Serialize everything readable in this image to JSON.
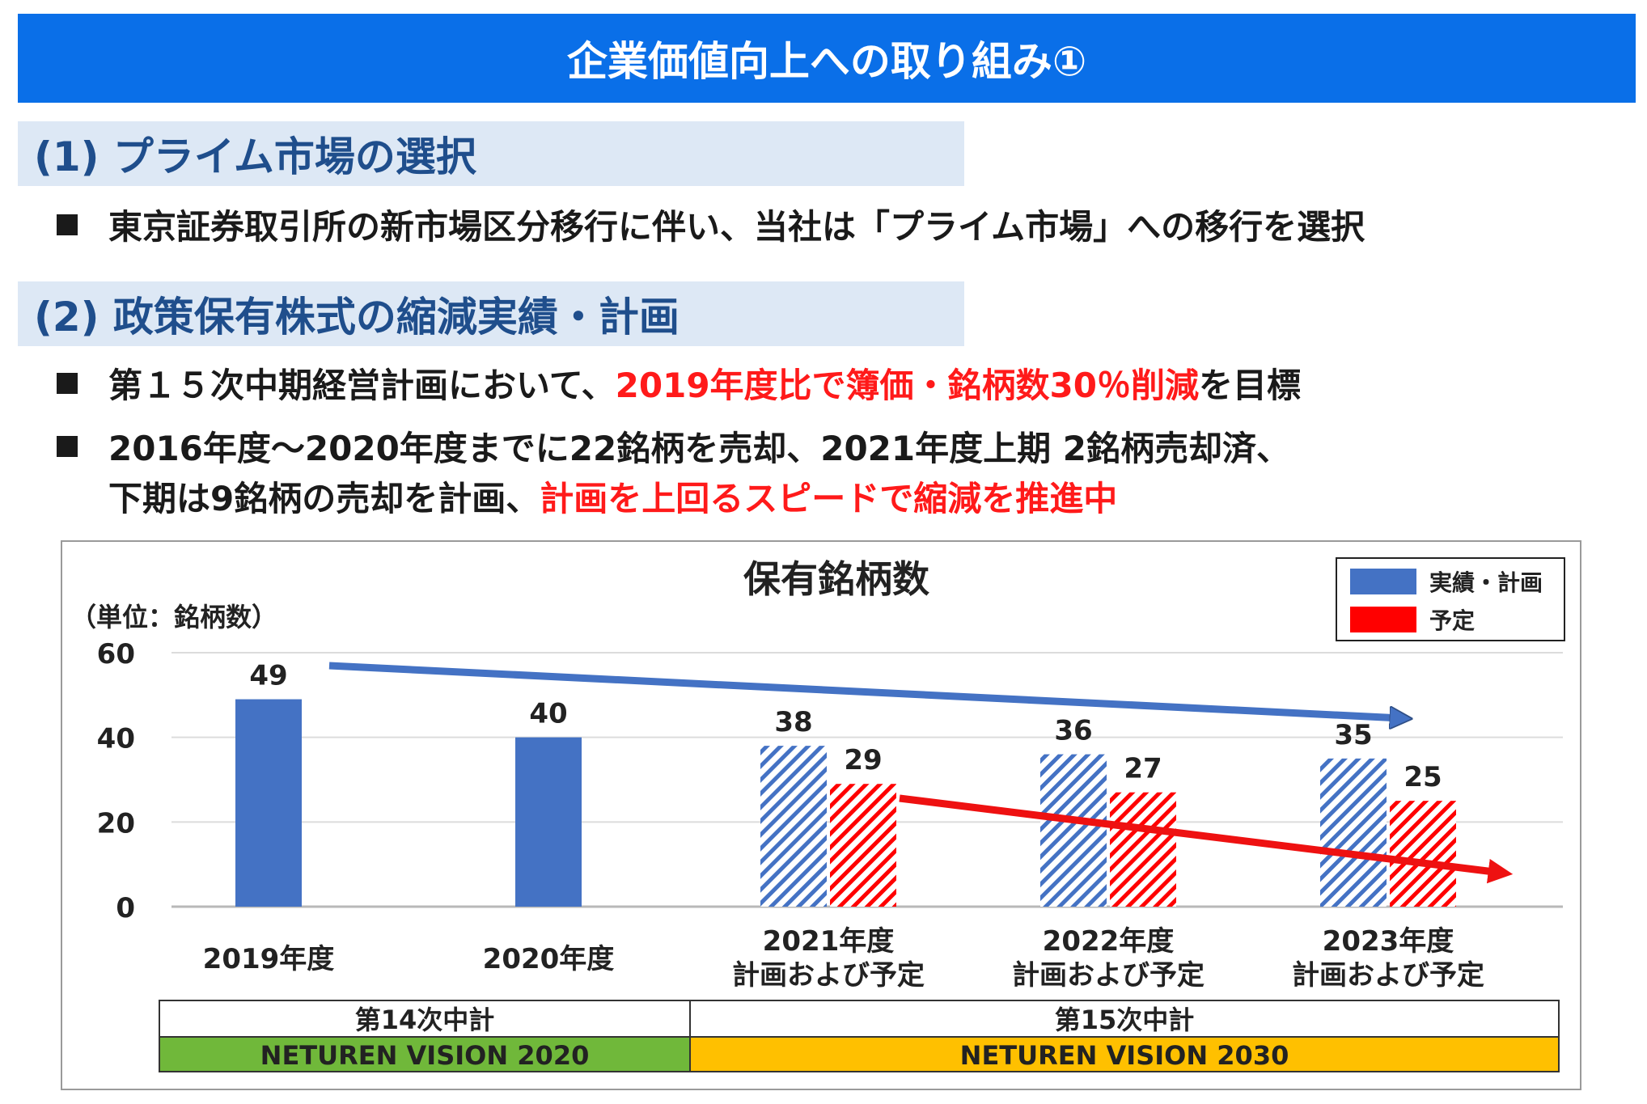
{
  "header": {
    "title": "企業価値向上への取り組み①"
  },
  "section1": {
    "heading": "(1) プライム市場の選択",
    "bullet": "東京証券取引所の新市場区分移行に伴い、当社は「プライム市場」への移行を選択"
  },
  "section2": {
    "heading": "(2) 政策保有株式の縮減実績・計画",
    "bullet1": {
      "pre": "第１５次中期経営計画において、",
      "highlight": "2019年度比で簿価・銘柄数30％削減",
      "post": "を目標"
    },
    "bullet2": {
      "line1": "2016年度～2020年度までに22銘柄を売却、2021年度上期 2銘柄売却済、",
      "line2_pre": "下期は9銘柄の売却を計画、",
      "line2_highlight": "計画を上回るスピードで縮減を推進中"
    }
  },
  "chart_data": {
    "type": "bar",
    "title": "保有銘柄数",
    "unit_label": "（単位：銘柄数）",
    "ylim": [
      0,
      60
    ],
    "yticks": [
      "0",
      "20",
      "40",
      "60"
    ],
    "categories": [
      {
        "line1": "2019年度",
        "line2": ""
      },
      {
        "line1": "2020年度",
        "line2": ""
      },
      {
        "line1": "2021年度",
        "line2": "計画および予定"
      },
      {
        "line1": "2022年度",
        "line2": "計画および予定"
      },
      {
        "line1": "2023年度",
        "line2": "計画および予定"
      }
    ],
    "series": [
      {
        "name": "実績・計画",
        "color": "#4472c4",
        "values": [
          49,
          40,
          38,
          36,
          35
        ],
        "hatched_from_index": 2
      },
      {
        "name": "予定",
        "color": "#ff0000",
        "values": [
          null,
          null,
          29,
          27,
          25
        ],
        "hatched_from_index": 2
      }
    ],
    "legend": {
      "placement": "top-right",
      "items": [
        "実績・計画",
        "予定"
      ]
    },
    "grid": true,
    "periods": [
      {
        "name": "第14次中計",
        "vision": "NETUREN VISION 2020",
        "color": "#70b83a",
        "categories": [
          0,
          1
        ]
      },
      {
        "name": "第15次中計",
        "vision": "NETUREN VISION 2030",
        "color": "#ffc000",
        "categories": [
          2,
          3,
          4
        ]
      }
    ]
  }
}
